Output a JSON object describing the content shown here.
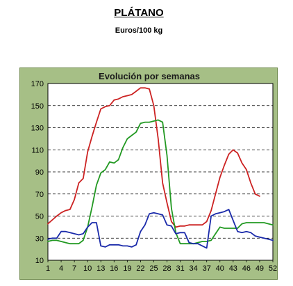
{
  "header": {
    "title": "PLÁTANO",
    "subtitle": "Euros/100 kg"
  },
  "chart_data": {
    "type": "line",
    "title": "Evolución por semanas",
    "xlabel": "",
    "ylabel": "",
    "xlim": [
      1,
      52
    ],
    "ylim": [
      10,
      170
    ],
    "x_ticks": [
      1,
      4,
      7,
      10,
      13,
      16,
      19,
      22,
      25,
      28,
      31,
      34,
      37,
      40,
      43,
      46,
      49,
      52
    ],
    "y_ticks": [
      10,
      30,
      50,
      70,
      90,
      110,
      130,
      150,
      170
    ],
    "grid": "horizontal dashed",
    "legend": "none",
    "series": [
      {
        "color": "#cc2222",
        "x": [
          1,
          3,
          4,
          5,
          6,
          7,
          8,
          9,
          10,
          11,
          12,
          13,
          14,
          15,
          16,
          17,
          18,
          19,
          20,
          21,
          22,
          23,
          24,
          25,
          26,
          27,
          28,
          29,
          30,
          31,
          32,
          33,
          34,
          35,
          36,
          37,
          38,
          39,
          40,
          41,
          42,
          43,
          44,
          45,
          46,
          47,
          48,
          49
        ],
        "values": [
          43,
          50,
          53,
          55,
          56,
          65,
          80,
          84,
          108,
          122,
          135,
          147,
          149,
          150,
          155,
          156,
          158,
          159,
          160,
          163,
          166,
          166,
          165,
          150,
          120,
          80,
          62,
          45,
          40,
          41,
          41,
          42,
          42,
          42,
          42,
          45,
          55,
          70,
          85,
          96,
          106,
          110,
          107,
          98,
          92,
          80,
          70,
          68
        ]
      },
      {
        "color": "#229922",
        "x": [
          1,
          2,
          3,
          4,
          5,
          6,
          7,
          8,
          9,
          10,
          11,
          12,
          13,
          14,
          15,
          16,
          17,
          18,
          19,
          20,
          21,
          22,
          23,
          24,
          25,
          26,
          27,
          28,
          29,
          30,
          31,
          32,
          33,
          34,
          35,
          36,
          37,
          38,
          39,
          40,
          41,
          42,
          43,
          44,
          45,
          46,
          47,
          48,
          49,
          50,
          51,
          52
        ],
        "values": [
          27,
          28,
          28,
          27,
          26,
          25,
          25,
          25,
          28,
          40,
          58,
          78,
          89,
          92,
          99,
          98,
          101,
          112,
          120,
          123,
          126,
          134,
          135,
          135,
          136,
          137,
          135,
          105,
          57,
          35,
          25,
          25,
          25,
          25,
          26,
          27,
          27,
          28,
          34,
          40,
          39,
          39,
          39,
          39,
          43,
          44,
          44,
          44,
          44,
          44,
          43,
          42
        ]
      },
      {
        "color": "#1a2aaa",
        "x": [
          1,
          2,
          3,
          4,
          5,
          6,
          7,
          8,
          9,
          10,
          11,
          12,
          13,
          14,
          15,
          16,
          17,
          18,
          19,
          20,
          21,
          22,
          23,
          24,
          25,
          26,
          27,
          28,
          29,
          30,
          31,
          32,
          33,
          34,
          35,
          36,
          37,
          38,
          39,
          40,
          41,
          42,
          43,
          44,
          45,
          46,
          47,
          48,
          49,
          50,
          51,
          52
        ],
        "values": [
          29,
          30,
          30,
          36,
          36,
          35,
          34,
          33,
          34,
          40,
          44,
          44,
          23,
          22,
          24,
          24,
          24,
          23,
          23,
          22,
          24,
          36,
          42,
          52,
          53,
          52,
          51,
          42,
          41,
          34,
          35,
          35,
          26,
          25,
          25,
          23,
          21,
          50,
          52,
          53,
          54,
          56,
          46,
          36,
          35,
          36,
          35,
          32,
          31,
          30,
          29,
          28
        ]
      }
    ]
  }
}
